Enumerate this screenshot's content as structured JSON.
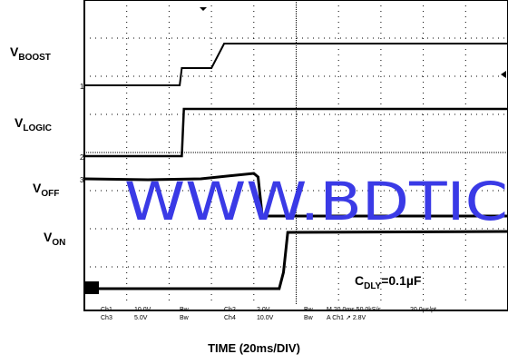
{
  "chart_data": {
    "type": "line",
    "title": "",
    "xlabel": "TIME (20ms/DIV)",
    "annotation": "C_DLY=0.1µF",
    "annotation_parts": {
      "main": "C",
      "sub": "DLY",
      "rest": "=0.1µF"
    },
    "watermark": "WWW.BDTIC",
    "x_unit": "ms",
    "xlim": [
      0,
      200
    ],
    "grid": true,
    "series": [
      {
        "name": "VBOOST",
        "name_main": "V",
        "name_sub": "BOOST",
        "channel_marker": "1",
        "stroke": 2,
        "x": [
          0,
          45,
          46,
          60,
          66,
          200
        ],
        "y": [
          94,
          94,
          75,
          75,
          48,
          48
        ]
      },
      {
        "name": "VLOGIC",
        "name_main": "V",
        "name_sub": "LOGIC",
        "channel_marker": "2",
        "stroke": 2.5,
        "x": [
          0,
          46,
          47,
          200
        ],
        "y": [
          172,
          172,
          120,
          120
        ]
      },
      {
        "name": "VOFF",
        "name_main": "V",
        "name_sub": "OFF",
        "channel_marker": "3",
        "stroke": 3,
        "x": [
          0,
          30,
          55,
          80,
          82,
          84,
          200
        ],
        "y": [
          197,
          198,
          197,
          191,
          195,
          238,
          238
        ]
      },
      {
        "name": "VON",
        "name_main": "V",
        "name_sub": "ON",
        "channel_marker": "",
        "stroke": 3,
        "x": [
          0,
          92,
          94,
          96,
          200
        ],
        "y": [
          318,
          318,
          300,
          256,
          255
        ]
      }
    ],
    "status_bar": {
      "ch1": [
        "Ch1",
        "10.0V"
      ],
      "ch3": [
        "Ch3",
        "5.0V"
      ],
      "bw1": [
        "Bw",
        "Bw"
      ],
      "ch2": [
        "Ch2",
        "2.0V"
      ],
      "ch4": [
        "Ch4",
        "10.0V"
      ],
      "bw2": [
        "Bw",
        "Bw"
      ],
      "bw3": [
        "Bw",
        "Bw"
      ],
      "timebase": "M 20.0ms 50.0kS/s",
      "trigger": "A  Ch1  ↗  2.8V",
      "sample": "20.0µs/pt"
    }
  }
}
